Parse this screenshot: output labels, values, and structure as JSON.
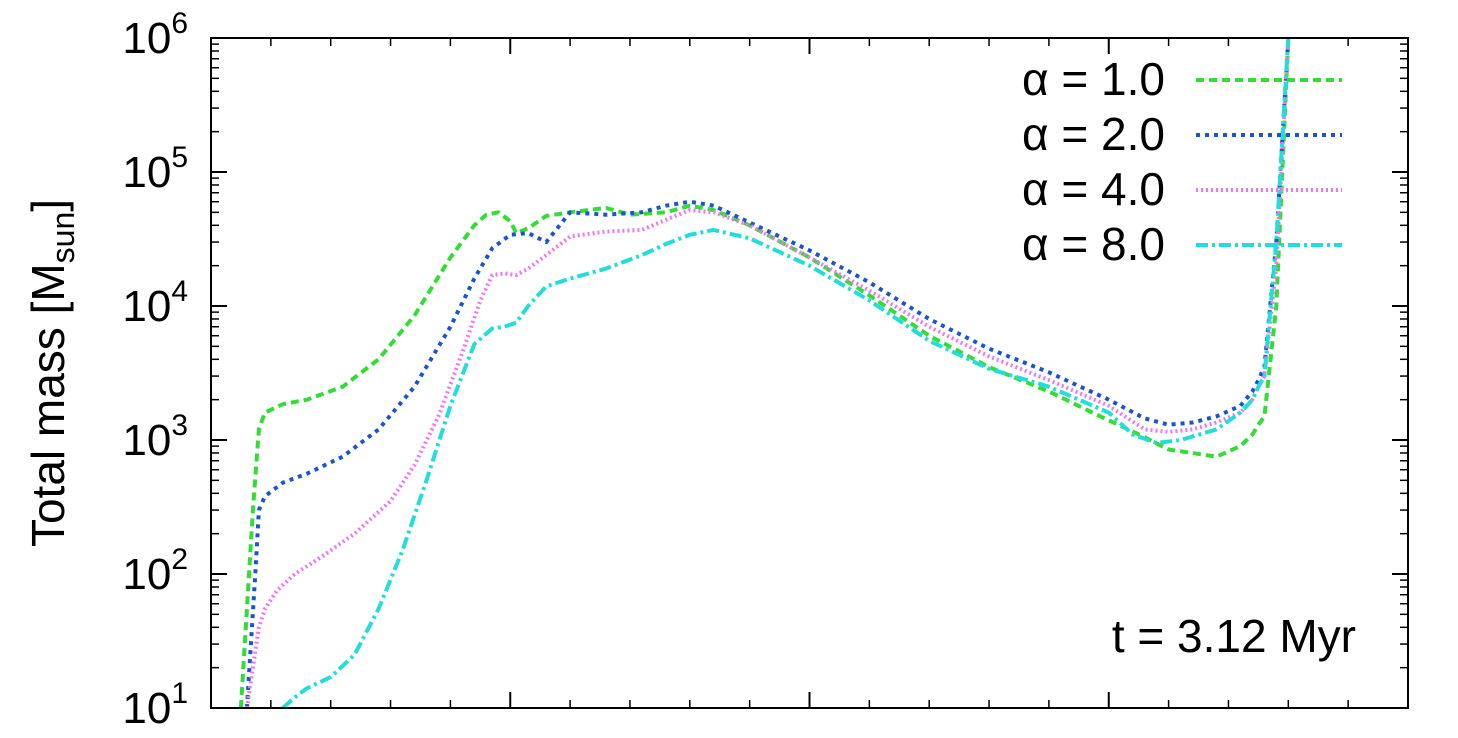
{
  "chart_data": {
    "type": "line",
    "title": "",
    "xlabel": "",
    "ylabel": "Total mass [M",
    "ylabel_subscript": "sun",
    "ylabel_close": "]",
    "yscale": "log",
    "ylim": [
      10,
      1000000
    ],
    "xlim": [
      0,
      1
    ],
    "grid": false,
    "legend_position": "top-right",
    "y_ticks": [
      {
        "base": "10",
        "exp": "1",
        "value": 10
      },
      {
        "base": "10",
        "exp": "2",
        "value": 100
      },
      {
        "base": "10",
        "exp": "3",
        "value": 1000
      },
      {
        "base": "10",
        "exp": "4",
        "value": 10000
      },
      {
        "base": "10",
        "exp": "5",
        "value": 100000
      },
      {
        "base": "10",
        "exp": "6",
        "value": 1000000
      }
    ],
    "x_major_ticks": [
      0,
      0.25,
      0.5,
      0.75,
      1.0
    ],
    "annotation": "t = 3.12 Myr",
    "series": [
      {
        "name": "α = 1.0",
        "color": "#33dd33",
        "dash": "8,5",
        "x": [
          0.025,
          0.035,
          0.04,
          0.045,
          0.06,
          0.08,
          0.11,
          0.14,
          0.17,
          0.2,
          0.22,
          0.23,
          0.24,
          0.25,
          0.255,
          0.265,
          0.28,
          0.3,
          0.33,
          0.35,
          0.38,
          0.4,
          0.42,
          0.45,
          0.5,
          0.55,
          0.6,
          0.65,
          0.7,
          0.75,
          0.78,
          0.8,
          0.82,
          0.84,
          0.86,
          0.87,
          0.875,
          0.88,
          0.89,
          0.9
        ],
        "y": [
          10,
          300,
          1200,
          1600,
          1850,
          2000,
          2500,
          4000,
          8500,
          23000,
          40000,
          48000,
          50000,
          43000,
          35000,
          38000,
          47000,
          50000,
          54000,
          48000,
          50000,
          56000,
          52000,
          40000,
          23000,
          12000,
          6000,
          3500,
          2300,
          1400,
          1050,
          850,
          800,
          750,
          900,
          1100,
          1300,
          1500,
          10000,
          1000000
        ]
      },
      {
        "name": "α = 2.0",
        "color": "#1a55cc",
        "dash": "4,5",
        "x": [
          0.03,
          0.037,
          0.04,
          0.045,
          0.06,
          0.08,
          0.11,
          0.14,
          0.17,
          0.2,
          0.22,
          0.235,
          0.25,
          0.265,
          0.28,
          0.3,
          0.33,
          0.36,
          0.38,
          0.4,
          0.42,
          0.45,
          0.5,
          0.55,
          0.6,
          0.65,
          0.7,
          0.75,
          0.78,
          0.8,
          0.82,
          0.84,
          0.86,
          0.87,
          0.875,
          0.88,
          0.89,
          0.9
        ],
        "y": [
          10,
          100,
          300,
          380,
          480,
          560,
          750,
          1200,
          2500,
          7000,
          16000,
          27000,
          34000,
          35000,
          30000,
          50000,
          48000,
          50000,
          56000,
          60000,
          56000,
          42000,
          26000,
          15000,
          8000,
          4800,
          3200,
          2000,
          1450,
          1300,
          1350,
          1500,
          1800,
          2300,
          2800,
          3500,
          30000,
          1000000
        ]
      },
      {
        "name": "α = 4.0",
        "color": "#ee77ee",
        "dash": "2,3",
        "x": [
          0.03,
          0.035,
          0.04,
          0.045,
          0.055,
          0.07,
          0.09,
          0.12,
          0.15,
          0.17,
          0.19,
          0.21,
          0.225,
          0.235,
          0.245,
          0.255,
          0.265,
          0.28,
          0.3,
          0.33,
          0.36,
          0.38,
          0.4,
          0.42,
          0.45,
          0.5,
          0.55,
          0.6,
          0.65,
          0.7,
          0.75,
          0.78,
          0.8,
          0.82,
          0.84,
          0.86,
          0.87,
          0.875,
          0.88,
          0.89,
          0.9
        ],
        "y": [
          10,
          20,
          40,
          55,
          75,
          100,
          130,
          200,
          350,
          650,
          1500,
          4500,
          11000,
          17000,
          17500,
          17000,
          19000,
          24000,
          33000,
          36000,
          37000,
          44000,
          52000,
          50000,
          40000,
          23000,
          13000,
          7000,
          4200,
          2800,
          1800,
          1200,
          1150,
          1200,
          1350,
          1600,
          2000,
          2500,
          3000,
          20000,
          1000000
        ]
      },
      {
        "name": "α = 8.0",
        "color": "#22dddd",
        "dash": "12,4,3,4",
        "x": [
          0.06,
          0.07,
          0.08,
          0.1,
          0.12,
          0.14,
          0.16,
          0.18,
          0.2,
          0.22,
          0.235,
          0.245,
          0.255,
          0.265,
          0.28,
          0.3,
          0.33,
          0.36,
          0.38,
          0.4,
          0.42,
          0.45,
          0.5,
          0.55,
          0.6,
          0.65,
          0.7,
          0.75,
          0.77,
          0.79,
          0.81,
          0.84,
          0.86,
          0.87,
          0.875,
          0.88,
          0.89,
          0.9
        ],
        "y": [
          10,
          12,
          14,
          17,
          25,
          55,
          150,
          500,
          1800,
          5200,
          6800,
          7000,
          7500,
          10000,
          14000,
          16000,
          19000,
          24000,
          29000,
          34000,
          37000,
          32000,
          20000,
          11000,
          5500,
          3400,
          2500,
          1600,
          1100,
          950,
          1000,
          1200,
          1600,
          2000,
          2500,
          3000,
          30000,
          1000000
        ]
      }
    ]
  }
}
